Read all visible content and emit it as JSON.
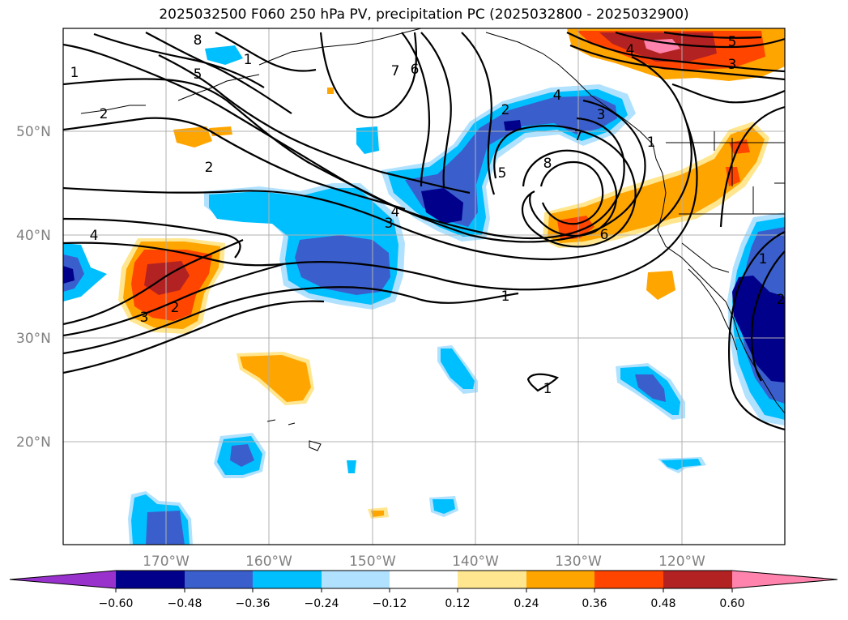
{
  "title": "2025032500 F060 250 hPa PV, precipitation PC (2025032800 - 2025032900)",
  "latitude_labels": [
    "50°N",
    "40°N",
    "30°N",
    "20°N"
  ],
  "longitude_labels": [
    "170°W",
    "160°W",
    "150°W",
    "140°W",
    "130°W",
    "120°W"
  ],
  "colorbar": {
    "tick_labels": [
      "−0.60",
      "−0.48",
      "−0.36",
      "−0.24",
      "−0.12",
      "0.12",
      "0.24",
      "0.36",
      "0.48",
      "0.60"
    ],
    "colors": [
      "#9932cc",
      "#00008b",
      "#3a5fcd",
      "#00bfff",
      "#b0e2ff",
      "#ffffff",
      "#ffe68f",
      "#ffa500",
      "#ff4500",
      "#b22222",
      "#ff83ac"
    ]
  },
  "pv_contour_labels": [
    "8",
    "1",
    "5",
    "1",
    "2",
    "2",
    "4",
    "3",
    "2",
    "3",
    "4",
    "1",
    "7",
    "6",
    "2",
    "4",
    "3",
    "5",
    "8",
    "7",
    "6",
    "1",
    "1",
    "4",
    "5",
    "3",
    "2",
    "1"
  ]
}
